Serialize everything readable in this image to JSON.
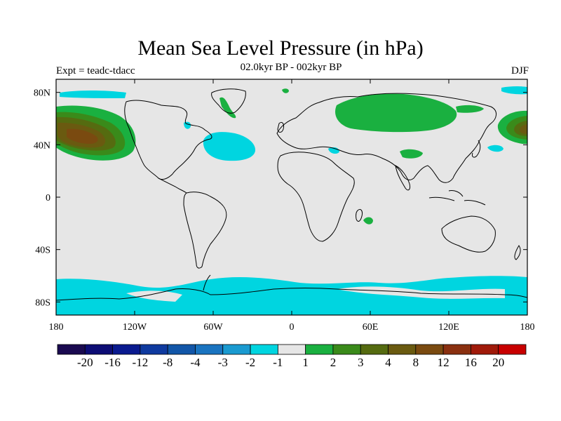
{
  "header": {
    "title": "Mean Sea Level Pressure (in hPa)",
    "subtitle": "02.0kyr BP - 002kyr BP",
    "experiment": "Expt = teadc-tdacc",
    "season": "DJF"
  },
  "axes": {
    "lon_ticks": [
      {
        "value": -180,
        "label": "180"
      },
      {
        "value": -120,
        "label": "120W"
      },
      {
        "value": -60,
        "label": "60W"
      },
      {
        "value": 0,
        "label": "0"
      },
      {
        "value": 60,
        "label": "60E"
      },
      {
        "value": 120,
        "label": "120E"
      },
      {
        "value": 180,
        "label": "180"
      }
    ],
    "lat_ticks": [
      {
        "value": 80,
        "label": "80N"
      },
      {
        "value": 40,
        "label": "40N"
      },
      {
        "value": 0,
        "label": "0"
      },
      {
        "value": -40,
        "label": "40S"
      },
      {
        "value": -80,
        "label": "80S"
      }
    ],
    "lon_range": [
      -180,
      180
    ],
    "lat_range": [
      -90,
      90
    ]
  },
  "colorbar": {
    "colors": [
      "#1a0a50",
      "#0d0d75",
      "#0a1a8f",
      "#0f3a9f",
      "#1256a8",
      "#1a74c0",
      "#1a9ad0",
      "#00d5e0",
      "#e6e6e6",
      "#1ab040",
      "#3a8a1a",
      "#556b10",
      "#6a5a10",
      "#7a4a10",
      "#8a3010",
      "#a01a0a",
      "#c80000"
    ],
    "labels": [
      "-20",
      "-16",
      "-12",
      "-8",
      "-4",
      "-3",
      "-2",
      "-1",
      "1",
      "2",
      "3",
      "4",
      "8",
      "12",
      "16",
      "20"
    ]
  },
  "colors": {
    "background_fill": "#e6e6e6",
    "negative_1": "#00d5e0",
    "positive_1": "#1ab040",
    "positive_2": "#3a8a1a",
    "positive_3": "#556b10",
    "positive_4": "#6a5a10",
    "positive_5": "#7a4a10"
  }
}
